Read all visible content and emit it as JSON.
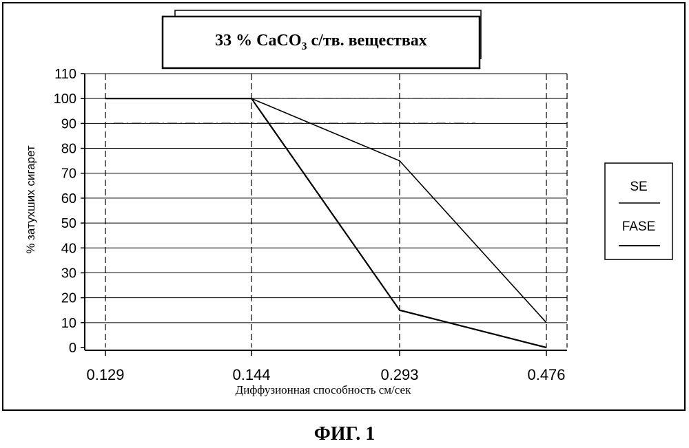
{
  "chart_data": {
    "type": "line",
    "title_parts": {
      "pre": "33 % CaCO",
      "sub": "3",
      "post": " с/тв. веществах"
    },
    "xlabel": "Диффузионная способность см/сек",
    "ylabel": "% затухших сигарет",
    "categories": [
      "0.129",
      "0.144",
      "0.293",
      "0.476"
    ],
    "yticks": [
      "0",
      "10",
      "20",
      "30",
      "40",
      "50",
      "60",
      "70",
      "80",
      "90",
      "100",
      "110"
    ],
    "ylim": [
      0,
      110
    ],
    "grid": true,
    "legend_position": "right",
    "series": [
      {
        "name": "SE",
        "values": [
          100,
          100,
          75,
          10
        ]
      },
      {
        "name": "FASE",
        "values": [
          100,
          100,
          15,
          0
        ]
      }
    ]
  },
  "caption": "ФИГ. 1",
  "colors": {
    "line": "#000000",
    "grid": "#000000",
    "background": "#ffffff"
  }
}
